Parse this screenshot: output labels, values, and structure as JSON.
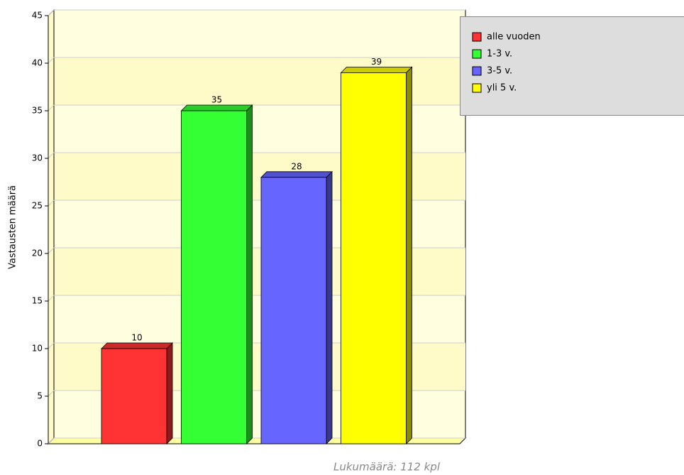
{
  "chart_data": {
    "type": "bar3d",
    "y_label": "Vastausten määrä",
    "footer": "Lukumäärä: 112 kpl",
    "categories": [
      null
    ],
    "series": [
      {
        "name": "alle vuoden",
        "color": "#ff3333",
        "values": [
          10
        ]
      },
      {
        "name": "1-3 v.",
        "color": "#33ff33",
        "values": [
          35
        ]
      },
      {
        "name": "3-5 v.",
        "color": "#6666ff",
        "values": [
          28
        ]
      },
      {
        "name": "yli 5 v.",
        "color": "#ffff00",
        "values": [
          39
        ]
      }
    ],
    "ylim": [
      0,
      45
    ],
    "yticks": [
      0,
      5,
      10,
      15,
      20,
      25,
      30,
      35,
      40,
      45
    ],
    "grid": true,
    "legend": "right"
  }
}
